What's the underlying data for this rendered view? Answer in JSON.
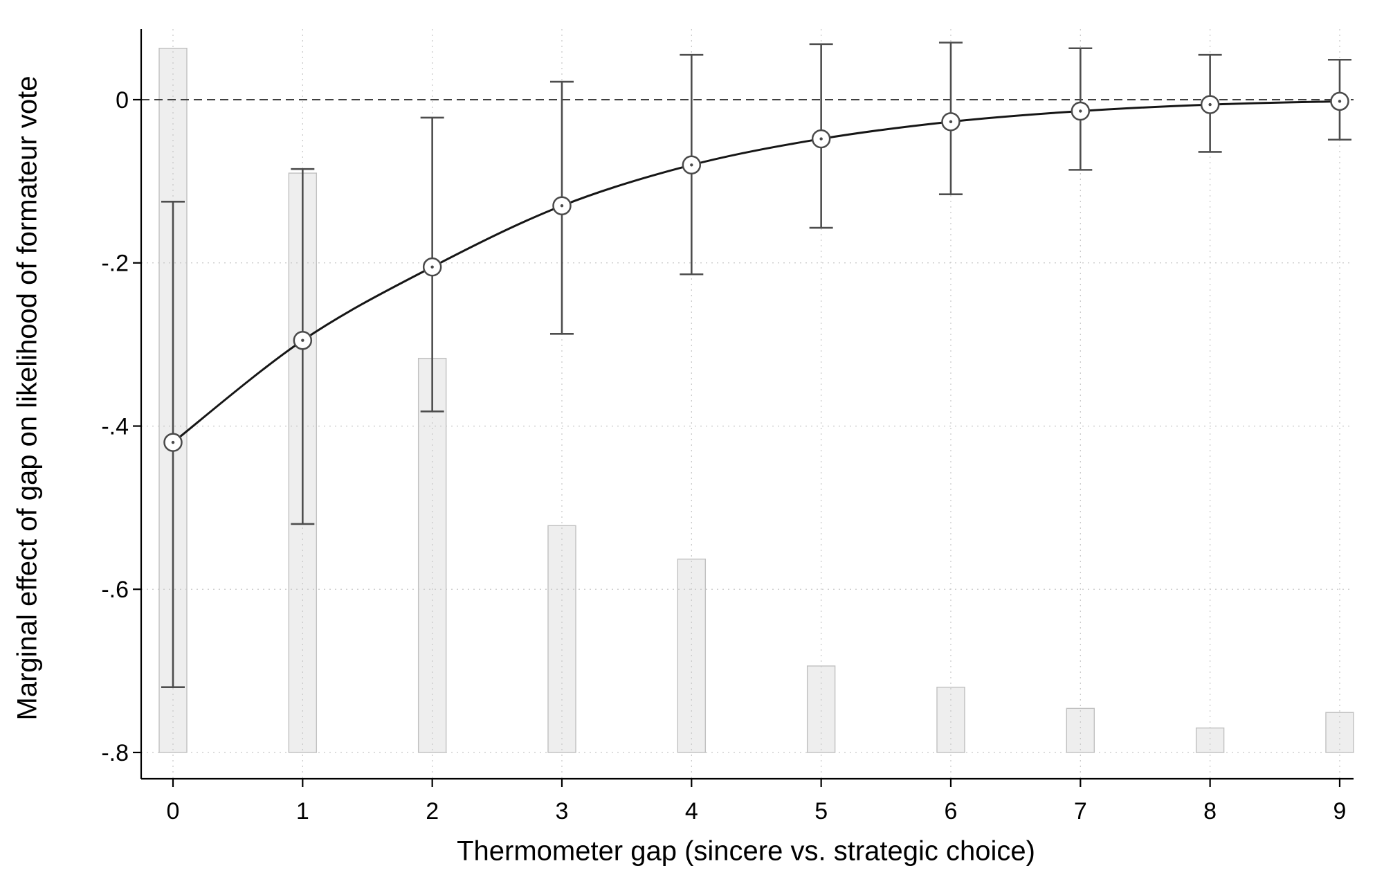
{
  "figure": {
    "background": "#ffffff"
  },
  "chart_data": {
    "type": "line",
    "title": "",
    "xlabel": "Thermometer gap (sincere vs. strategic choice)",
    "ylabel": "Marginal effect of gap on likelihood of formateur vote",
    "x": [
      0,
      1,
      2,
      3,
      4,
      5,
      6,
      7,
      8,
      9
    ],
    "x_tick_labels": [
      "0",
      "1",
      "2",
      "3",
      "4",
      "5",
      "6",
      "7",
      "8",
      "9"
    ],
    "y_ticks": [
      0,
      -0.2,
      -0.4,
      -0.6,
      -0.8
    ],
    "y_tick_labels": [
      "0",
      "-.2",
      "-.4",
      "-.6",
      "-.8"
    ],
    "ylim": [
      -0.835,
      0.09
    ],
    "grid": "dotted horizontal and vertical gridlines at every tick",
    "zero_line": "dashed horizontal line at 0",
    "legend": "none",
    "series": [
      {
        "name": "marginal_effect",
        "type": "line+markers",
        "y": [
          -0.42,
          -0.295,
          -0.205,
          -0.13,
          -0.08,
          -0.048,
          -0.027,
          -0.014,
          -0.006,
          -0.002
        ]
      },
      {
        "name": "confidence_interval",
        "type": "errorbar",
        "low": [
          -0.72,
          -0.52,
          -0.382,
          -0.287,
          -0.214,
          -0.157,
          -0.116,
          -0.086,
          -0.064,
          -0.049
        ],
        "high": [
          -0.125,
          -0.085,
          -0.022,
          0.022,
          0.055,
          0.068,
          0.07,
          0.063,
          0.055,
          0.049
        ]
      },
      {
        "name": "frequency_histogram",
        "type": "bar",
        "baseline": -0.8,
        "top": [
          0.063,
          -0.09,
          -0.317,
          -0.522,
          -0.563,
          -0.694,
          -0.72,
          -0.746,
          -0.77,
          -0.751
        ]
      }
    ]
  },
  "colors": {
    "background": "#ffffff",
    "line": "#161616",
    "marker_stroke": "#4a4a4a",
    "marker_fill": "#ffffff",
    "errorbar": "#4d4d4d",
    "bar_fill": "#eeeeee",
    "bar_stroke": "#c0c0c0",
    "grid": "#c6c6c6",
    "zero_line": "#3f3f3f",
    "axis": "#000000",
    "text": "#000000"
  }
}
